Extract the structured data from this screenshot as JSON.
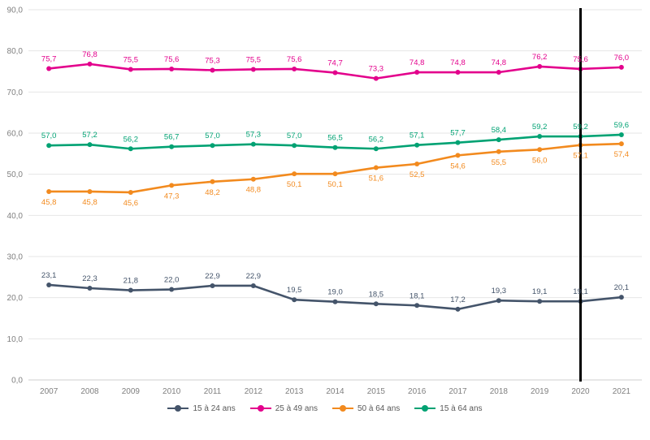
{
  "chart_data": {
    "type": "line",
    "title": "",
    "xlabel": "",
    "ylabel": "",
    "ylim": [
      0,
      90
    ],
    "yticks": [
      "0,0",
      "10,0",
      "20,0",
      "30,0",
      "40,0",
      "50,0",
      "60,0",
      "70,0",
      "80,0",
      "90,0"
    ],
    "categories": [
      "2007",
      "2008",
      "2009",
      "2010",
      "2011",
      "2012",
      "2013",
      "2014",
      "2015",
      "2016",
      "2017",
      "2018",
      "2019",
      "2020",
      "2021"
    ],
    "marker_line_at": "2020",
    "legend_position": "bottom",
    "series": [
      {
        "name": "15 à 24 ans",
        "color": "#44546a",
        "label_position": "above",
        "values": [
          23.1,
          22.3,
          21.8,
          22.0,
          22.9,
          22.9,
          19.5,
          19.0,
          18.5,
          18.1,
          17.2,
          19.3,
          19.1,
          19.1,
          20.1
        ],
        "labels": [
          "23,1",
          "22,3",
          "21,8",
          "22,0",
          "22,9",
          "22,9",
          "19,5",
          "19,0",
          "18,5",
          "18,1",
          "17,2",
          "19,3",
          "19,1",
          "19,1",
          "20,1"
        ]
      },
      {
        "name": "25 à 49 ans",
        "color": "#e3008c",
        "label_position": "above",
        "values": [
          75.7,
          76.8,
          75.5,
          75.6,
          75.3,
          75.5,
          75.6,
          74.7,
          73.3,
          74.8,
          74.8,
          74.8,
          76.2,
          75.6,
          76.0
        ],
        "labels": [
          "75,7",
          "76,8",
          "75,5",
          "75,6",
          "75,3",
          "75,5",
          "75,6",
          "74,7",
          "73,3",
          "74,8",
          "74,8",
          "74,8",
          "76,2",
          "75,6",
          "76,0"
        ]
      },
      {
        "name": "50 à 64 ans",
        "color": "#f28a1e",
        "label_position": "below",
        "values": [
          45.8,
          45.8,
          45.6,
          47.3,
          48.2,
          48.8,
          50.1,
          50.1,
          51.6,
          52.5,
          54.6,
          55.5,
          56.0,
          57.1,
          57.4
        ],
        "labels": [
          "45,8",
          "45,8",
          "45,6",
          "47,3",
          "48,2",
          "48,8",
          "50,1",
          "50,1",
          "51,6",
          "52,5",
          "54,6",
          "55,5",
          "56,0",
          "57,1",
          "57,4"
        ]
      },
      {
        "name": "15 à 64 ans",
        "color": "#00a273",
        "label_position": "above",
        "values": [
          57.0,
          57.2,
          56.2,
          56.7,
          57.0,
          57.3,
          57.0,
          56.5,
          56.2,
          57.1,
          57.7,
          58.4,
          59.2,
          59.2,
          59.6
        ],
        "labels": [
          "57,0",
          "57,2",
          "56,2",
          "56,7",
          "57,0",
          "57,3",
          "57,0",
          "56,5",
          "56,2",
          "57,1",
          "57,7",
          "58,4",
          "59,2",
          "59,2",
          "59,6"
        ]
      }
    ]
  }
}
